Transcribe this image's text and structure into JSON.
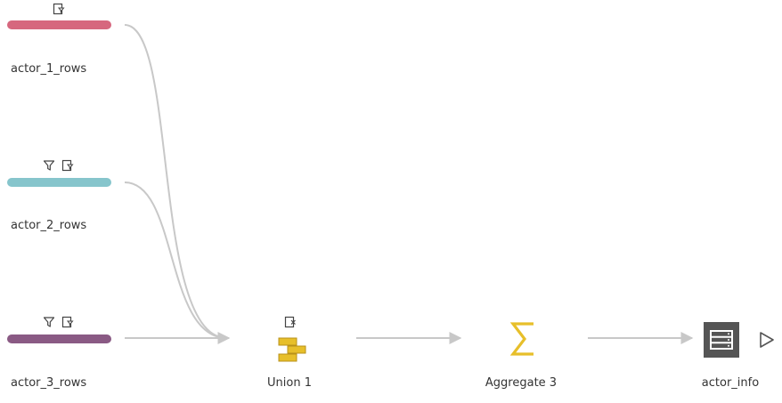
{
  "inputs": [
    {
      "label": "actor_1_rows",
      "color": "#d6677e",
      "icons": [
        "edit-filter-icon"
      ]
    },
    {
      "label": "actor_2_rows",
      "color": "#86c5cc",
      "icons": [
        "filter-icon",
        "edit-filter-icon"
      ]
    },
    {
      "label": "actor_3_rows",
      "color": "#8a5a84",
      "icons": [
        "filter-icon",
        "edit-filter-icon"
      ]
    }
  ],
  "union": {
    "label": "Union 1",
    "color": "#e7bf2a",
    "badge_icon": "edit-remove-icon"
  },
  "aggregate": {
    "label": "Aggregate 3",
    "color": "#e7bf2a",
    "icon": "sigma-icon"
  },
  "output": {
    "label": "actor_info",
    "color": "#555555",
    "icon": "output-table-icon",
    "run_icon": "play-outline-icon"
  },
  "colors": {
    "connector": "#c8c8c8",
    "icon_stroke": "#444444"
  }
}
